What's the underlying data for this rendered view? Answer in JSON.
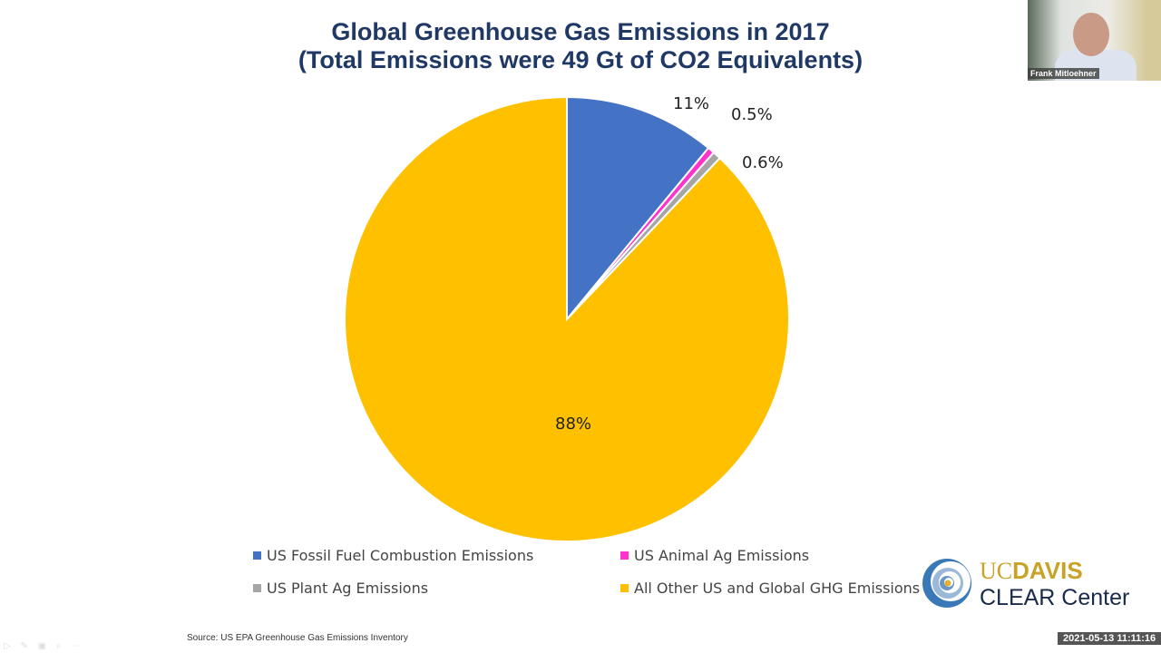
{
  "chart_data": {
    "type": "pie",
    "title": "Global Greenhouse Gas Emissions in 2017",
    "subtitle": "(Total Emissions were 49 Gt of CO2 Equivalents)",
    "slices": [
      {
        "name": "US Fossil Fuel Combustion Emissions",
        "value": 11,
        "label": "11%",
        "color": "#4472c4"
      },
      {
        "name": "US Animal Ag Emissions",
        "value": 0.5,
        "label": "0.5%",
        "color": "#ff33cc"
      },
      {
        "name": "US Plant Ag Emissions",
        "value": 0.6,
        "label": "0.6%",
        "color": "#a5a5a5"
      },
      {
        "name": "All Other US and Global GHG Emissions",
        "value": 88,
        "label": "88%",
        "color": "#ffc000"
      }
    ],
    "start": "top",
    "direction": "clockwise",
    "legend_position": "bottom",
    "source": "Source: US EPA Greenhouse Gas Emissions Inventory"
  },
  "video": {
    "participant_name": "Frank Mitloehner",
    "timestamp": "2021-05-13 11:11:16"
  },
  "logo": {
    "uc": "UC",
    "davis": "DAVIS",
    "center": "CLEAR Center"
  }
}
